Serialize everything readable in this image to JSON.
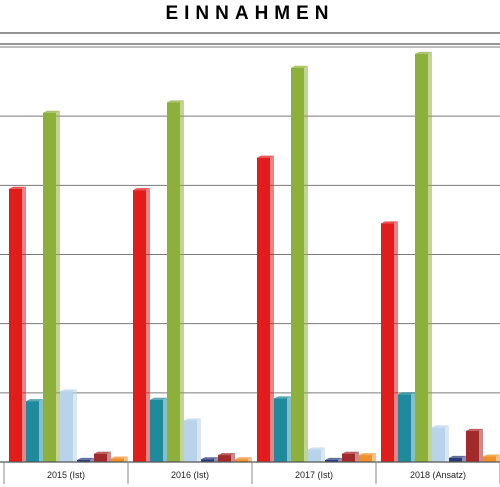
{
  "chart_data": {
    "type": "bar",
    "title": "EINNAHMEN",
    "categories": [
      "2015 (Ist)",
      "2016 (Ist)",
      "2017 (Ist)",
      "2018 (Ansatz)"
    ],
    "ylim": [
      0,
      6
    ],
    "grid": true,
    "legend": "none",
    "series": [
      {
        "color": "#e21b1b",
        "values": [
          3.95,
          3.93,
          4.4,
          3.45
        ]
      },
      {
        "color": "#1f8a9c",
        "values": [
          0.88,
          0.9,
          0.92,
          0.98
        ]
      },
      {
        "color": "#8db03a",
        "values": [
          5.05,
          5.2,
          5.7,
          5.9
        ]
      },
      {
        "color": "#b9d3ea",
        "values": [
          1.02,
          0.6,
          0.18,
          0.5
        ]
      },
      {
        "color": "#2b3b7a",
        "values": [
          0.03,
          0.04,
          0.03,
          0.06
        ]
      },
      {
        "color": "#a32a2a",
        "values": [
          0.12,
          0.1,
          0.12,
          0.45
        ]
      },
      {
        "color": "#f0902a",
        "values": [
          0.05,
          0.04,
          0.1,
          0.08
        ]
      }
    ]
  }
}
